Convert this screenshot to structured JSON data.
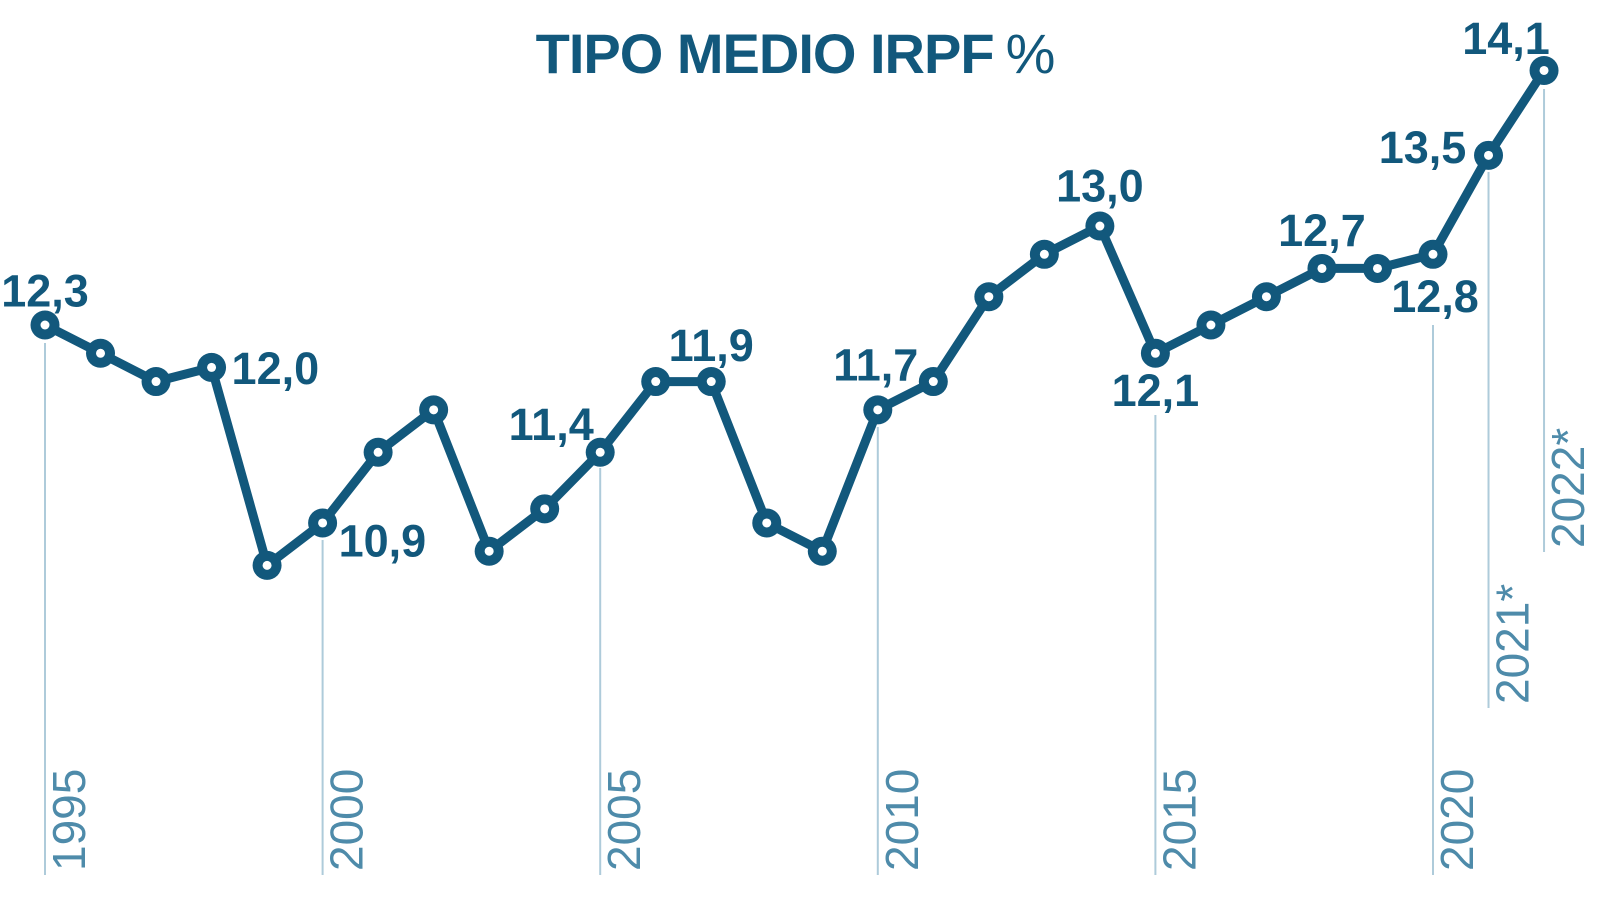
{
  "title": {
    "main": "TIPO MEDIO IRPF",
    "suffix": "%"
  },
  "colors": {
    "line": "#12587C",
    "marker": "#12587C",
    "marker_center": "#FFFFFF",
    "value_label": "#12587C",
    "axis_text": "#4E8BAA",
    "gridline": "#AECBDA",
    "background": "#FFFFFF",
    "title": "#12587C"
  },
  "chart_data": {
    "type": "line",
    "title": "TIPO MEDIO IRPF %",
    "xlabel": "",
    "ylabel": "",
    "grid": "vertical-tick-lines-only",
    "legend": "none",
    "x_range": [
      1995,
      2022
    ],
    "ylim": [
      10.4,
      14.3
    ],
    "x": [
      1995,
      1996,
      1997,
      1998,
      1999,
      2000,
      2001,
      2002,
      2003,
      2004,
      2005,
      2006,
      2007,
      2008,
      2009,
      2010,
      2011,
      2012,
      2013,
      2014,
      2015,
      2016,
      2017,
      2018,
      2019,
      2020,
      2021,
      2022
    ],
    "values": [
      12.3,
      12.1,
      11.9,
      12.0,
      10.6,
      10.9,
      11.4,
      11.7,
      10.7,
      11.0,
      11.4,
      11.9,
      11.9,
      10.9,
      10.7,
      11.7,
      11.9,
      12.5,
      12.8,
      13.0,
      12.1,
      12.3,
      12.5,
      12.7,
      12.7,
      12.8,
      13.5,
      14.1
    ],
    "point_labels": [
      {
        "year": 1995,
        "text": "12,3"
      },
      {
        "year": 1998,
        "text": "12,0"
      },
      {
        "year": 2000,
        "text": "10,9"
      },
      {
        "year": 2005,
        "text": "11,4"
      },
      {
        "year": 2007,
        "text": "11,9"
      },
      {
        "year": 2010,
        "text": "11,7"
      },
      {
        "year": 2014,
        "text": "13,0"
      },
      {
        "year": 2015,
        "text": "12,1"
      },
      {
        "year": 2018,
        "text": "12,7"
      },
      {
        "year": 2020,
        "text": "12,8"
      },
      {
        "year": 2021,
        "text": "13,5"
      },
      {
        "year": 2022,
        "text": "14,1"
      }
    ],
    "x_ticks": [
      {
        "year": 1995,
        "label": "1995"
      },
      {
        "year": 2000,
        "label": "2000"
      },
      {
        "year": 2005,
        "label": "2005"
      },
      {
        "year": 2010,
        "label": "2010"
      },
      {
        "year": 2015,
        "label": "2015"
      },
      {
        "year": 2020,
        "label": "2020"
      },
      {
        "year": 2021,
        "label": "2021*"
      },
      {
        "year": 2022,
        "label": "2022*"
      }
    ]
  }
}
